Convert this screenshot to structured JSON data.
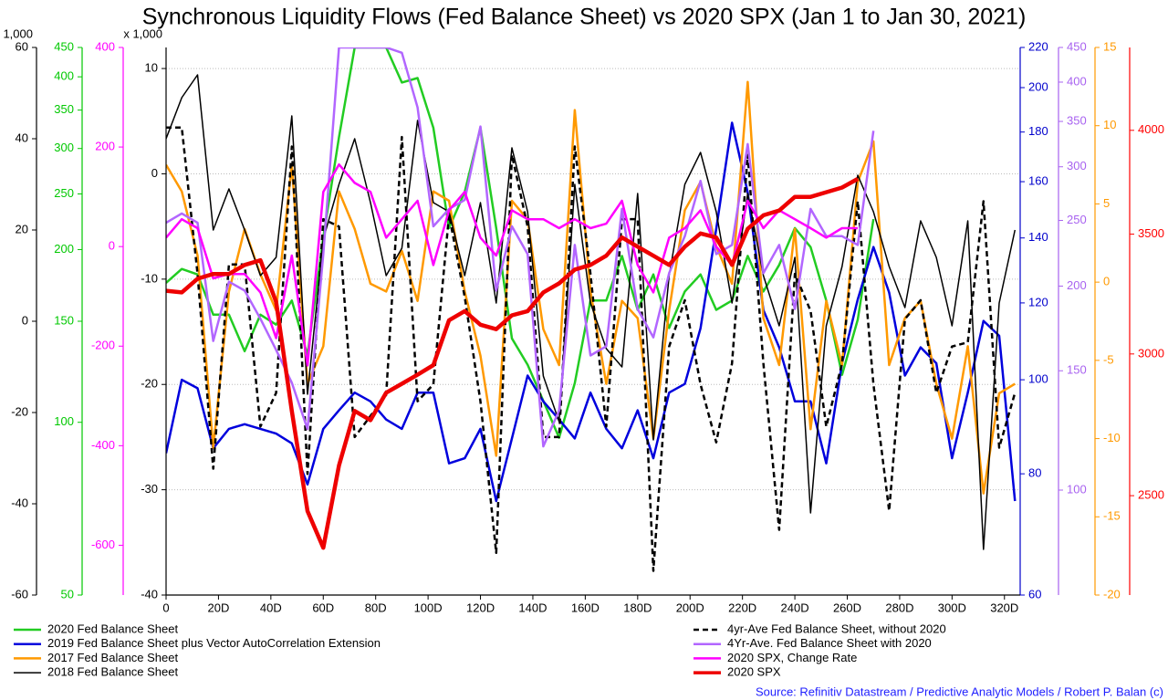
{
  "chart_data": {
    "type": "line",
    "title": "Synchronous Liquidity Flows (Fed Balance Sheet) vs 2020 SPX (Jan 1 to Jan 30, 2021)",
    "source": "Source: Refinitiv Datastream / Predictive Analytic Models / Robert P. Balan (c)",
    "grid": true,
    "xlim": [
      0,
      326
    ],
    "xticks": [
      0,
      {
        "value": 20,
        "label": "20D"
      },
      {
        "value": 40,
        "label": "40D"
      },
      {
        "value": 60,
        "label": "60D"
      },
      {
        "value": 80,
        "label": "80D"
      },
      {
        "value": 100,
        "label": "100D"
      },
      {
        "value": 120,
        "label": "120D"
      },
      {
        "value": 140,
        "label": "140D"
      },
      {
        "value": 160,
        "label": "160D"
      },
      {
        "value": 180,
        "label": "180D"
      },
      {
        "value": 200,
        "label": "200D"
      },
      {
        "value": 220,
        "label": "220D"
      },
      {
        "value": 240,
        "label": "240D"
      },
      {
        "value": 260,
        "label": "260D"
      },
      {
        "value": 280,
        "label": "280D"
      },
      {
        "value": 300,
        "label": "300D"
      },
      {
        "value": 320,
        "label": "320D"
      }
    ],
    "x": [
      0,
      6,
      12,
      18,
      24,
      30,
      36,
      42,
      48,
      54,
      60,
      66,
      72,
      78,
      84,
      90,
      96,
      102,
      108,
      114,
      120,
      126,
      132,
      138,
      144,
      150,
      156,
      162,
      168,
      174,
      180,
      186,
      192,
      198,
      204,
      210,
      216,
      222,
      228,
      234,
      240,
      246,
      252,
      258,
      264,
      270,
      276,
      282,
      288,
      294,
      300,
      306,
      312,
      318,
      324
    ],
    "axes": {
      "y": {
        "label": "x 1,000",
        "ylim": [
          -40,
          12
        ],
        "yticks": [
          -40,
          -30,
          -20,
          -10,
          0,
          10
        ],
        "color": "#000000",
        "log": false
      },
      "y2": {
        "label": "x 1,000",
        "ylim": [
          -60,
          60
        ],
        "yticks": [
          -60,
          -40,
          -20,
          0,
          20,
          40,
          60
        ],
        "color": "#000000",
        "log": false
      },
      "y3": {
        "ylim": [
          50,
          450
        ],
        "yticks": [
          50,
          100,
          150,
          200,
          250,
          300,
          350,
          400,
          450
        ],
        "color": "#00c800",
        "log": true
      },
      "y4": {
        "ylim": [
          -700,
          400
        ],
        "yticks": [
          -600,
          -400,
          -200,
          0,
          200,
          400
        ],
        "color": "#ff00ff",
        "log": false
      },
      "y5": {
        "ylim": [
          60,
          220
        ],
        "yticks": [
          60,
          80,
          100,
          120,
          140,
          160,
          180,
          200,
          220
        ],
        "color": "#0000cc",
        "log": true
      },
      "y6": {
        "ylim": [
          70,
          450
        ],
        "yticks": [
          100,
          150,
          200,
          250,
          300,
          350,
          400,
          450
        ],
        "color": "#a862f0",
        "log": true
      },
      "y7": {
        "ylim": [
          -20,
          15
        ],
        "yticks": [
          -20,
          -15,
          -10,
          -5,
          0,
          5,
          10,
          15
        ],
        "color": "#ff9900",
        "log": false
      },
      "y8": {
        "ylim": [
          2200,
          4450
        ],
        "yticks": [
          2500,
          3000,
          3500,
          4000
        ],
        "color": "#ff0000",
        "log": true
      }
    },
    "series": [
      {
        "name": "2020 Fed Balance Sheet",
        "color": "#22cc22",
        "axis": "y3",
        "style": "solid",
        "width": 2.5,
        "values": [
          175,
          185,
          181,
          154,
          154,
          133,
          154,
          148,
          163,
          131,
          210,
          314,
          450,
          450,
          450,
          391,
          398,
          326,
          218,
          252,
          326,
          218,
          140,
          126,
          109,
          94,
          117,
          163,
          163,
          195,
          157,
          181,
          146,
          169,
          181,
          157,
          163,
          195,
          169,
          188,
          218,
          202,
          163,
          121,
          151,
          226,
          null,
          null,
          null,
          null,
          null,
          null,
          null,
          null,
          null
        ]
      },
      {
        "name": "2019 Fed Balance Sheet plus Vector AutoCorrelation Extension",
        "color": "#0000dd",
        "axis": "y5",
        "style": "solid",
        "width": 2.5,
        "values": [
          84,
          100,
          98,
          85,
          89,
          90,
          89,
          88,
          86,
          78,
          89,
          93,
          97,
          95,
          91,
          89,
          97,
          97,
          82,
          83,
          89,
          75,
          87,
          101,
          95,
          91,
          87,
          97,
          89,
          85,
          93,
          83,
          97,
          99,
          113,
          143,
          184,
          156,
          118,
          108,
          95,
          95,
          82,
          104,
          121,
          137,
          123,
          101,
          108,
          104,
          83,
          97,
          115,
          111,
          75
        ]
      },
      {
        "name": "2017 Fed Balance Sheet",
        "color": "#ff9900",
        "axis": "y7",
        "style": "solid",
        "width": 2.5,
        "values": [
          7.5,
          5.8,
          1.7,
          -10.6,
          -0.6,
          3.4,
          0.5,
          -1.8,
          7.5,
          -6.5,
          -4.1,
          5.8,
          3.4,
          -0.1,
          -0.6,
          2,
          -1.2,
          5.8,
          5.2,
          -0.6,
          -4.7,
          -11.1,
          5.2,
          4,
          -3,
          -5.3,
          11,
          -0.6,
          -6.5,
          -1.2,
          -2.3,
          -10,
          -1.8,
          4.6,
          6.4,
          2.3,
          -0.1,
          12.8,
          -2.3,
          -5.3,
          3.4,
          -9.4,
          -1.2,
          -5.3,
          6.4,
          9,
          -5.3,
          -2.3,
          -1.2,
          -6.5,
          -10,
          -4.1,
          -13.5,
          -7.1,
          -6.5
        ]
      },
      {
        "name": "2018 Fed Balance Sheet",
        "color": "#000000",
        "axis": "y2",
        "style": "solid",
        "width": 1.5,
        "values": [
          40,
          49,
          54,
          20,
          29,
          20,
          10,
          14,
          45,
          -16,
          18,
          30,
          40,
          26,
          10,
          16,
          44,
          26,
          24,
          10,
          26,
          4,
          38,
          24,
          -12,
          -22,
          30,
          4,
          -6,
          -10,
          28,
          -26,
          10,
          30,
          37,
          24,
          4,
          28,
          10,
          -1,
          14,
          -42,
          -1,
          12,
          32,
          24,
          12,
          3,
          22,
          14,
          -1,
          22,
          -50,
          4,
          20
        ]
      },
      {
        "name": "4yr-Ave Fed Balance Sheet, without 2020",
        "color": "#000000",
        "axis": "y",
        "style": "dashed",
        "width": 2.5,
        "values": [
          4.4,
          4.4,
          -9.5,
          -28,
          -8.6,
          -8.6,
          -24,
          -20.8,
          2.6,
          -28.5,
          -4.3,
          -5,
          -25,
          -23,
          -21,
          3.5,
          -21.6,
          -20,
          -3.9,
          -11.7,
          -21.6,
          -36,
          1.8,
          -5,
          -25,
          -25,
          2.6,
          -9.5,
          -24,
          -4.3,
          -4.3,
          -37.7,
          -16.4,
          -12,
          -20,
          -25.5,
          -18,
          1.8,
          -18,
          -33.8,
          -9.5,
          -13,
          -24,
          -18,
          -2.6,
          -20,
          -32,
          -13.8,
          -12,
          -20.8,
          -16.4,
          -16,
          -2.6,
          -26,
          -20.8
        ]
      },
      {
        "name": "4Yr-Ave. Fed Balance Sheet with 2020",
        "color": "#b266ff",
        "axis": "y6",
        "style": "solid",
        "width": 2.5,
        "values": [
          248,
          256,
          248,
          166,
          203,
          197,
          179,
          161,
          144,
          123,
          223,
          450,
          450,
          450,
          450,
          442,
          367,
          245,
          260,
          268,
          344,
          197,
          245,
          223,
          116,
          131,
          230,
          158,
          163,
          260,
          185,
          168,
          209,
          237,
          286,
          223,
          230,
          324,
          209,
          230,
          185,
          260,
          237,
          237,
          230,
          339,
          null,
          null,
          null,
          null,
          null,
          null,
          null,
          null,
          null
        ]
      },
      {
        "name": "2020 SPX, Change Rate",
        "color": "#ff00ff",
        "axis": "y4",
        "style": "solid",
        "width": 2.5,
        "values": [
          18,
          55,
          37,
          -64,
          -55,
          -55,
          -92,
          -184,
          -18,
          -239,
          110,
          165,
          128,
          110,
          18,
          55,
          92,
          -37,
          73,
          110,
          18,
          -18,
          73,
          55,
          55,
          37,
          55,
          37,
          46,
          92,
          -37,
          -92,
          18,
          37,
          73,
          0,
          -37,
          92,
          37,
          73,
          55,
          37,
          18,
          37,
          37,
          null,
          null,
          null,
          null,
          null,
          null,
          null,
          null,
          null,
          null
        ]
      },
      {
        "name": "2020 SPX",
        "color": "#ee0000",
        "axis": "y8",
        "style": "solid",
        "width": 4.5,
        "values": [
          3254,
          3247,
          3305,
          3325,
          3325,
          3364,
          3384,
          3208,
          2788,
          2451,
          2338,
          2599,
          2788,
          2755,
          2854,
          2887,
          2921,
          2957,
          3133,
          3170,
          3115,
          3097,
          3153,
          3170,
          3247,
          3285,
          3344,
          3364,
          3404,
          3485,
          3444,
          3404,
          3364,
          3444,
          3503,
          3485,
          3364,
          3524,
          3586,
          3608,
          3672,
          3672,
          3694,
          3716,
          3758,
          null,
          null,
          null,
          null,
          null,
          null,
          null,
          null,
          null,
          null
        ]
      }
    ]
  }
}
